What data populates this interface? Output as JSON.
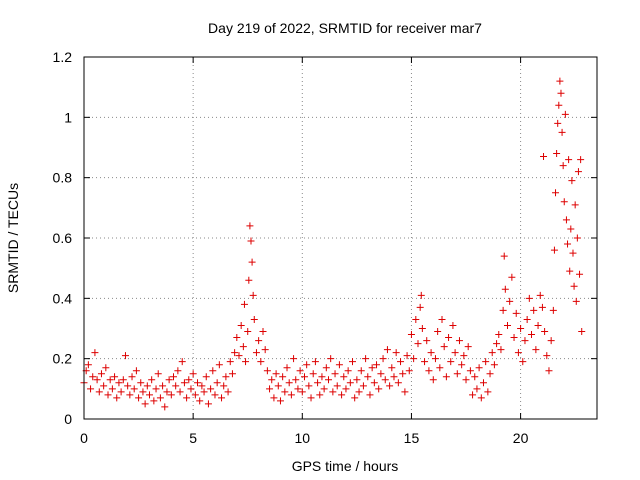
{
  "chart_data": {
    "type": "scatter",
    "title": "Day 219 of 2022, SRMTID for receiver mar7",
    "xlabel": "GPS time / hours",
    "ylabel": "SRMTID / TECUs",
    "xlim": [
      0,
      23.5
    ],
    "ylim": [
      0,
      1.2
    ],
    "xticks": [
      0,
      5,
      10,
      15,
      20
    ],
    "xtick_labels": [
      "0",
      "5",
      "10",
      "15",
      "20"
    ],
    "yticks": [
      0,
      0.2,
      0.4,
      0.6,
      0.8,
      1.0,
      1.2
    ],
    "ytick_labels": [
      "0",
      "0.2",
      "0.4",
      "0.6",
      "0.8",
      "1",
      "1.2"
    ],
    "grid": true,
    "marker": "+",
    "color": "#dd0000",
    "series": [
      {
        "name": "SRMTID",
        "points": [
          [
            0.0,
            0.12
          ],
          [
            0.1,
            0.16
          ],
          [
            0.2,
            0.18
          ],
          [
            0.3,
            0.1
          ],
          [
            0.4,
            0.14
          ],
          [
            0.5,
            0.22
          ],
          [
            0.6,
            0.13
          ],
          [
            0.7,
            0.09
          ],
          [
            0.8,
            0.15
          ],
          [
            0.9,
            0.11
          ],
          [
            1.0,
            0.17
          ],
          [
            1.1,
            0.08
          ],
          [
            1.2,
            0.13
          ],
          [
            1.3,
            0.1
          ],
          [
            1.4,
            0.14
          ],
          [
            1.5,
            0.07
          ],
          [
            1.6,
            0.12
          ],
          [
            1.7,
            0.09
          ],
          [
            1.8,
            0.13
          ],
          [
            1.9,
            0.21
          ],
          [
            2.0,
            0.11
          ],
          [
            2.1,
            0.08
          ],
          [
            2.2,
            0.14
          ],
          [
            2.3,
            0.1
          ],
          [
            2.4,
            0.16
          ],
          [
            2.5,
            0.07
          ],
          [
            2.6,
            0.12
          ],
          [
            2.7,
            0.09
          ],
          [
            2.8,
            0.05
          ],
          [
            2.9,
            0.11
          ],
          [
            3.0,
            0.08
          ],
          [
            3.1,
            0.13
          ],
          [
            3.2,
            0.06
          ],
          [
            3.3,
            0.1
          ],
          [
            3.4,
            0.15
          ],
          [
            3.5,
            0.07
          ],
          [
            3.6,
            0.11
          ],
          [
            3.7,
            0.04
          ],
          [
            3.8,
            0.09
          ],
          [
            3.9,
            0.13
          ],
          [
            4.0,
            0.08
          ],
          [
            4.1,
            0.14
          ],
          [
            4.2,
            0.11
          ],
          [
            4.3,
            0.16
          ],
          [
            4.4,
            0.09
          ],
          [
            4.5,
            0.19
          ],
          [
            4.6,
            0.12
          ],
          [
            4.7,
            0.07
          ],
          [
            4.8,
            0.13
          ],
          [
            4.9,
            0.1
          ],
          [
            5.0,
            0.15
          ],
          [
            5.1,
            0.08
          ],
          [
            5.2,
            0.12
          ],
          [
            5.3,
            0.06
          ],
          [
            5.4,
            0.11
          ],
          [
            5.5,
            0.09
          ],
          [
            5.6,
            0.14
          ],
          [
            5.7,
            0.05
          ],
          [
            5.8,
            0.1
          ],
          [
            5.9,
            0.16
          ],
          [
            6.0,
            0.08
          ],
          [
            6.1,
            0.12
          ],
          [
            6.2,
            0.18
          ],
          [
            6.3,
            0.07
          ],
          [
            6.4,
            0.11
          ],
          [
            6.5,
            0.14
          ],
          [
            6.6,
            0.09
          ],
          [
            6.7,
            0.19
          ],
          [
            6.8,
            0.15
          ],
          [
            6.9,
            0.22
          ],
          [
            7.0,
            0.27
          ],
          [
            7.1,
            0.21
          ],
          [
            7.2,
            0.31
          ],
          [
            7.3,
            0.24
          ],
          [
            7.35,
            0.38
          ],
          [
            7.4,
            0.19
          ],
          [
            7.5,
            0.29
          ],
          [
            7.55,
            0.46
          ],
          [
            7.6,
            0.64
          ],
          [
            7.65,
            0.59
          ],
          [
            7.7,
            0.52
          ],
          [
            7.75,
            0.41
          ],
          [
            7.8,
            0.33
          ],
          [
            7.9,
            0.22
          ],
          [
            8.0,
            0.26
          ],
          [
            8.1,
            0.19
          ],
          [
            8.2,
            0.29
          ],
          [
            8.3,
            0.23
          ],
          [
            8.4,
            0.16
          ],
          [
            8.5,
            0.1
          ],
          [
            8.6,
            0.13
          ],
          [
            8.7,
            0.07
          ],
          [
            8.8,
            0.15
          ],
          [
            8.9,
            0.11
          ],
          [
            9.0,
            0.06
          ],
          [
            9.1,
            0.14
          ],
          [
            9.2,
            0.09
          ],
          [
            9.3,
            0.17
          ],
          [
            9.4,
            0.12
          ],
          [
            9.5,
            0.08
          ],
          [
            9.6,
            0.2
          ],
          [
            9.7,
            0.13
          ],
          [
            9.8,
            0.1
          ],
          [
            9.9,
            0.16
          ],
          [
            10.0,
            0.09
          ],
          [
            10.1,
            0.14
          ],
          [
            10.2,
            0.18
          ],
          [
            10.3,
            0.11
          ],
          [
            10.4,
            0.07
          ],
          [
            10.5,
            0.15
          ],
          [
            10.6,
            0.19
          ],
          [
            10.7,
            0.12
          ],
          [
            10.8,
            0.08
          ],
          [
            10.9,
            0.14
          ],
          [
            11.0,
            0.1
          ],
          [
            11.1,
            0.17
          ],
          [
            11.2,
            0.13
          ],
          [
            11.3,
            0.2
          ],
          [
            11.4,
            0.09
          ],
          [
            11.5,
            0.15
          ],
          [
            11.6,
            0.11
          ],
          [
            11.7,
            0.18
          ],
          [
            11.8,
            0.08
          ],
          [
            11.9,
            0.14
          ],
          [
            12.0,
            0.1
          ],
          [
            12.1,
            0.16
          ],
          [
            12.2,
            0.12
          ],
          [
            12.3,
            0.19
          ],
          [
            12.4,
            0.07
          ],
          [
            12.5,
            0.13
          ],
          [
            12.6,
            0.09
          ],
          [
            12.7,
            0.16
          ],
          [
            12.8,
            0.11
          ],
          [
            12.9,
            0.2
          ],
          [
            13.0,
            0.14
          ],
          [
            13.1,
            0.08
          ],
          [
            13.2,
            0.17
          ],
          [
            13.3,
            0.12
          ],
          [
            13.4,
            0.18
          ],
          [
            13.5,
            0.1
          ],
          [
            13.6,
            0.15
          ],
          [
            13.7,
            0.2
          ],
          [
            13.8,
            0.13
          ],
          [
            13.9,
            0.23
          ],
          [
            14.0,
            0.11
          ],
          [
            14.1,
            0.17
          ],
          [
            14.2,
            0.14
          ],
          [
            14.3,
            0.22
          ],
          [
            14.4,
            0.12
          ],
          [
            14.5,
            0.19
          ],
          [
            14.6,
            0.15
          ],
          [
            14.7,
            0.09
          ],
          [
            14.8,
            0.21
          ],
          [
            14.9,
            0.16
          ],
          [
            15.0,
            0.28
          ],
          [
            15.1,
            0.2
          ],
          [
            15.2,
            0.33
          ],
          [
            15.3,
            0.25
          ],
          [
            15.4,
            0.37
          ],
          [
            15.45,
            0.41
          ],
          [
            15.5,
            0.3
          ],
          [
            15.6,
            0.19
          ],
          [
            15.7,
            0.26
          ],
          [
            15.8,
            0.16
          ],
          [
            15.9,
            0.22
          ],
          [
            16.0,
            0.13
          ],
          [
            16.1,
            0.2
          ],
          [
            16.2,
            0.29
          ],
          [
            16.3,
            0.17
          ],
          [
            16.4,
            0.33
          ],
          [
            16.5,
            0.24
          ],
          [
            16.6,
            0.14
          ],
          [
            16.7,
            0.27
          ],
          [
            16.8,
            0.19
          ],
          [
            16.9,
            0.31
          ],
          [
            17.0,
            0.22
          ],
          [
            17.1,
            0.15
          ],
          [
            17.2,
            0.26
          ],
          [
            17.3,
            0.18
          ],
          [
            17.4,
            0.21
          ],
          [
            17.5,
            0.13
          ],
          [
            17.6,
            0.24
          ],
          [
            17.7,
            0.16
          ],
          [
            17.8,
            0.08
          ],
          [
            17.9,
            0.14
          ],
          [
            18.0,
            0.1
          ],
          [
            18.1,
            0.17
          ],
          [
            18.2,
            0.07
          ],
          [
            18.3,
            0.12
          ],
          [
            18.4,
            0.19
          ],
          [
            18.5,
            0.09
          ],
          [
            18.6,
            0.15
          ],
          [
            18.7,
            0.22
          ],
          [
            18.8,
            0.18
          ],
          [
            18.9,
            0.25
          ],
          [
            19.0,
            0.28
          ],
          [
            19.1,
            0.23
          ],
          [
            19.2,
            0.36
          ],
          [
            19.25,
            0.54
          ],
          [
            19.3,
            0.43
          ],
          [
            19.4,
            0.31
          ],
          [
            19.5,
            0.39
          ],
          [
            19.6,
            0.47
          ],
          [
            19.7,
            0.27
          ],
          [
            19.8,
            0.35
          ],
          [
            19.9,
            0.22
          ],
          [
            20.0,
            0.3
          ],
          [
            20.1,
            0.19
          ],
          [
            20.2,
            0.26
          ],
          [
            20.3,
            0.33
          ],
          [
            20.4,
            0.4
          ],
          [
            20.5,
            0.28
          ],
          [
            20.6,
            0.36
          ],
          [
            20.7,
            0.23
          ],
          [
            20.8,
            0.31
          ],
          [
            20.9,
            0.41
          ],
          [
            21.0,
            0.37
          ],
          [
            21.05,
            0.87
          ],
          [
            21.1,
            0.29
          ],
          [
            21.2,
            0.21
          ],
          [
            21.3,
            0.16
          ],
          [
            21.4,
            0.26
          ],
          [
            21.5,
            0.36
          ],
          [
            21.55,
            0.56
          ],
          [
            21.6,
            0.75
          ],
          [
            21.65,
            0.88
          ],
          [
            21.7,
            0.98
          ],
          [
            21.75,
            1.04
          ],
          [
            21.8,
            1.12
          ],
          [
            21.85,
            1.08
          ],
          [
            21.9,
            0.95
          ],
          [
            21.95,
            0.84
          ],
          [
            22.0,
            0.72
          ],
          [
            22.05,
            1.01
          ],
          [
            22.1,
            0.66
          ],
          [
            22.15,
            0.58
          ],
          [
            22.2,
            0.86
          ],
          [
            22.25,
            0.49
          ],
          [
            22.3,
            0.63
          ],
          [
            22.35,
            0.79
          ],
          [
            22.4,
            0.55
          ],
          [
            22.45,
            0.44
          ],
          [
            22.5,
            0.71
          ],
          [
            22.55,
            0.39
          ],
          [
            22.6,
            0.6
          ],
          [
            22.65,
            0.82
          ],
          [
            22.7,
            0.48
          ],
          [
            22.75,
            0.86
          ],
          [
            22.8,
            0.29
          ]
        ]
      }
    ]
  }
}
